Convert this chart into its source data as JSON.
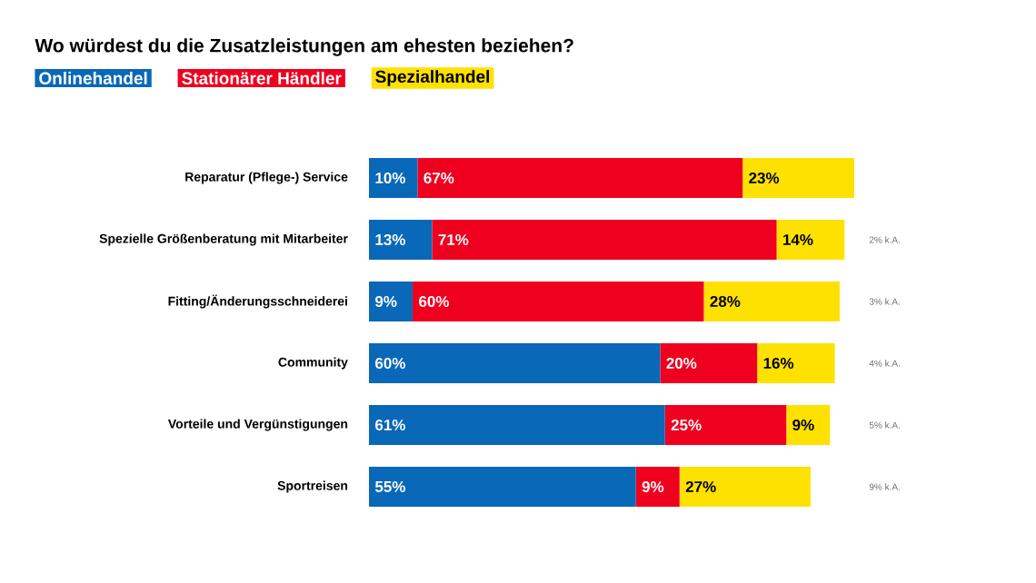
{
  "chart_data": {
    "type": "bar",
    "orientation": "horizontal",
    "stacked": true,
    "title": "Wo würdest du die Zusatzleistungen am ehesten beziehen?",
    "legend": "top left",
    "tick_labels": "y",
    "categories": [
      "Reparatur (Pflege-) Service",
      "Spezielle Größenberatung mit Mitarbeiter",
      "Fitting/Änderungsschneiderei",
      "Community",
      "Vorteile und Vergünstigungen",
      "Sportreisen"
    ],
    "series": [
      {
        "name": "Onlinehandel",
        "color": "#0a68b8",
        "values": [
          10,
          13,
          9,
          60,
          61,
          55
        ],
        "value_labels": [
          "10%",
          "13%",
          "9%",
          "60%",
          "61%",
          "55%"
        ]
      },
      {
        "name": "Stationärer Händler",
        "color": "#f0001f",
        "values": [
          67,
          71,
          60,
          20,
          25,
          9
        ],
        "value_labels": [
          "67%",
          "71%",
          "60%",
          "20%",
          "25%",
          "9%"
        ]
      },
      {
        "name": "Spezialhandel",
        "color": "#ffe100",
        "values": [
          23,
          14,
          28,
          16,
          9,
          27
        ],
        "value_labels": [
          "23%",
          "14%",
          "28%",
          "16%",
          "9%",
          "27%"
        ]
      }
    ],
    "annotations": [
      "2% k.A.",
      "3% k.A.",
      "4% k.A.",
      "5% k.A.",
      "9% k.A."
    ]
  }
}
